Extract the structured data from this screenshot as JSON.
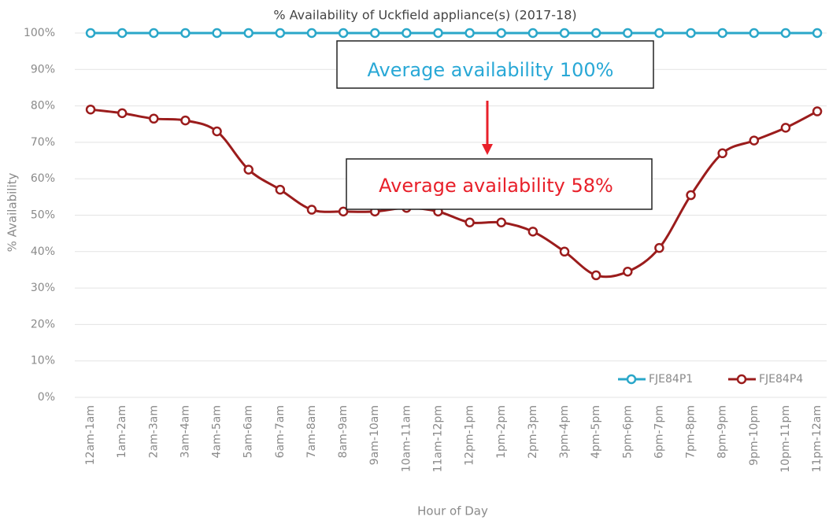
{
  "chart_data": {
    "type": "line",
    "title": "% Availability of Uckfield appliance(s) (2017-18)",
    "x_label": "Hour of Day",
    "y_label": "% Availability",
    "categories": [
      "12am-1am",
      "1am-2am",
      "2am-3am",
      "3am-4am",
      "4am-5am",
      "5am-6am",
      "6am-7am",
      "7am-8am",
      "8am-9am",
      "9am-10am",
      "10am-11am",
      "11am-12pm",
      "12pm-1pm",
      "1pm-2pm",
      "2pm-3pm",
      "3pm-4pm",
      "4pm-5pm",
      "5pm-6pm",
      "6pm-7pm",
      "7pm-8pm",
      "8pm-9pm",
      "9pm-10pm",
      "10pm-11pm",
      "11pm-12am"
    ],
    "series": [
      {
        "name": "FJE84P1",
        "color": "#2aa7c9",
        "values": [
          100,
          100,
          100,
          100,
          100,
          100,
          100,
          100,
          100,
          100,
          100,
          100,
          100,
          100,
          100,
          100,
          100,
          100,
          100,
          100,
          100,
          100,
          100,
          100
        ]
      },
      {
        "name": "FJE84P4",
        "color": "#9b1c1c",
        "values": [
          79,
          78,
          76.5,
          76,
          73,
          62.5,
          57,
          51.5,
          51,
          51,
          52,
          51,
          48,
          48,
          45.5,
          40,
          33.5,
          34.5,
          41,
          55.5,
          67,
          70.5,
          74,
          78.5
        ]
      }
    ],
    "ylim": [
      0,
      100
    ],
    "yticks": [
      {
        "value": 0,
        "label": "0%"
      },
      {
        "value": 10,
        "label": "10%"
      },
      {
        "value": 20,
        "label": "20%"
      },
      {
        "value": 30,
        "label": "30%"
      },
      {
        "value": 40,
        "label": "40%"
      },
      {
        "value": 50,
        "label": "50%"
      },
      {
        "value": 60,
        "label": "60%"
      },
      {
        "value": 70,
        "label": "70%"
      },
      {
        "value": 80,
        "label": "80%"
      },
      {
        "value": 90,
        "label": "90%"
      },
      {
        "value": 100,
        "label": "100%"
      }
    ],
    "grid": true,
    "legend": "lower right",
    "annotations": [
      {
        "text": "Average availability 100%",
        "color": "#29a8d6"
      },
      {
        "text": "Average availability 58%",
        "color": "#e8202a"
      }
    ]
  }
}
